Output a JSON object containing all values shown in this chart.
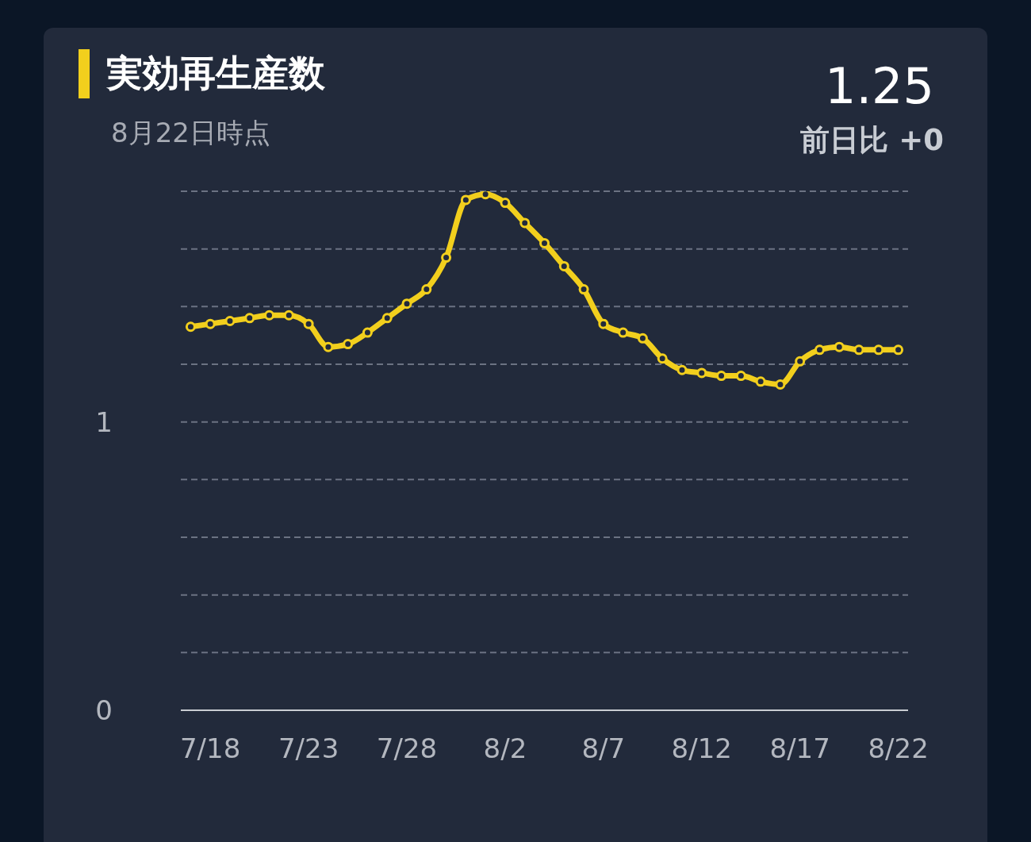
{
  "chart_data": {
    "type": "line",
    "title": "実効再生産数",
    "subtitle": "8月22日時点",
    "annotations": [
      "1.25",
      "前日比 +0"
    ],
    "categories": [
      null,
      "7/18",
      null,
      null,
      null,
      null,
      "7/23",
      null,
      null,
      null,
      null,
      "7/28",
      null,
      null,
      null,
      null,
      "8/2",
      null,
      null,
      null,
      null,
      "8/7",
      null,
      null,
      null,
      null,
      "8/12",
      null,
      null,
      null,
      null,
      "8/17",
      null,
      null,
      null,
      null,
      "8/22"
    ],
    "series": [
      {
        "color": "#f2cf1d",
        "values": [
          1.33,
          1.34,
          1.35,
          1.36,
          1.37,
          1.37,
          1.34,
          1.26,
          1.27,
          1.31,
          1.36,
          1.41,
          1.46,
          1.57,
          1.77,
          1.79,
          1.76,
          1.69,
          1.62,
          1.54,
          1.46,
          1.34,
          1.31,
          1.29,
          1.22,
          1.18,
          1.17,
          1.16,
          1.16,
          1.14,
          1.13,
          1.21,
          1.25,
          1.26,
          1.25,
          1.25,
          1.25
        ]
      }
    ],
    "ylim": [
      0,
      1.8
    ],
    "yticks": [
      0,
      {
        "value": 0.2,
        "label": null
      },
      {
        "value": 0.4,
        "label": null
      },
      {
        "value": 0.6,
        "label": null
      },
      {
        "value": 0.8,
        "label": null
      },
      1,
      {
        "value": 1.2,
        "label": null
      },
      {
        "value": 1.4,
        "label": null
      },
      {
        "value": 1.6,
        "label": null
      },
      {
        "value": 1.8,
        "label": null
      }
    ],
    "grid": "y",
    "legend": false,
    "marker": "circle",
    "line_style": "solid"
  }
}
